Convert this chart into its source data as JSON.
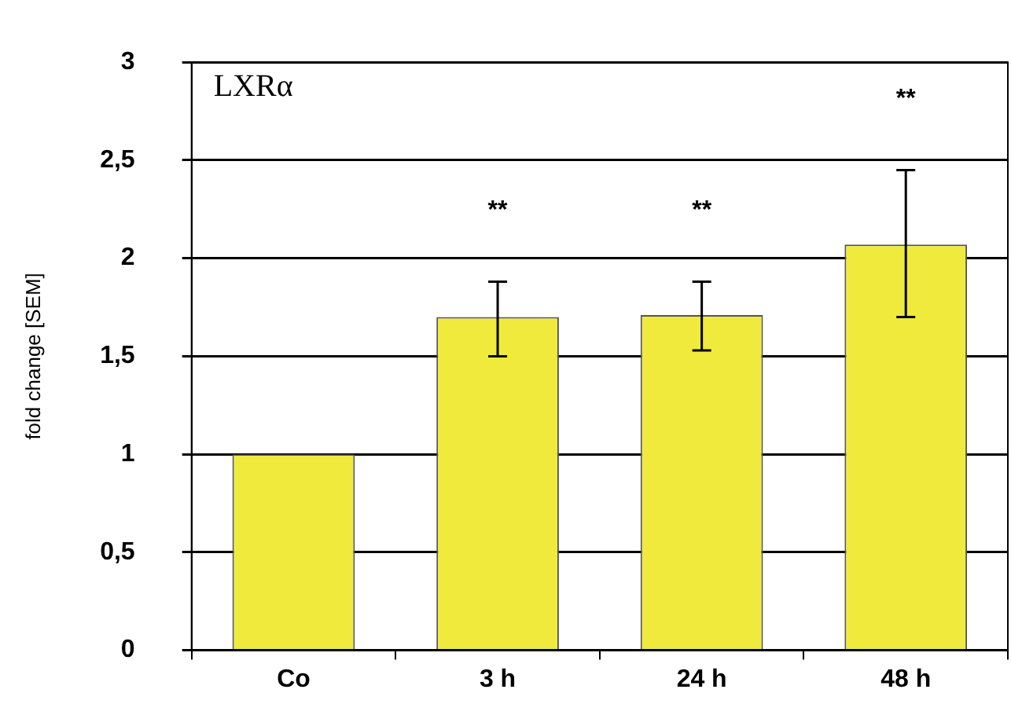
{
  "chart_data": {
    "type": "bar",
    "title": "LXRα",
    "ylabel": "fold change [SEM]",
    "categories": [
      "Co",
      "3 h",
      "24 h",
      "48 h"
    ],
    "values": [
      1.0,
      1.7,
      1.71,
      2.07
    ],
    "errors": [
      null,
      [
        1.5,
        1.88
      ],
      [
        1.53,
        1.88
      ],
      [
        1.7,
        2.45
      ]
    ],
    "color": "#f0ea3c",
    "ylim": [
      0,
      3
    ],
    "yticks": [
      0,
      {
        "value": 0.5,
        "label": "0,5"
      },
      1,
      {
        "value": 1.5,
        "label": "1,5"
      },
      2,
      {
        "value": 2.5,
        "label": "2,5"
      },
      3
    ],
    "grid": "y",
    "legend": false,
    "annotations": [
      "**",
      "**",
      "**"
    ]
  }
}
